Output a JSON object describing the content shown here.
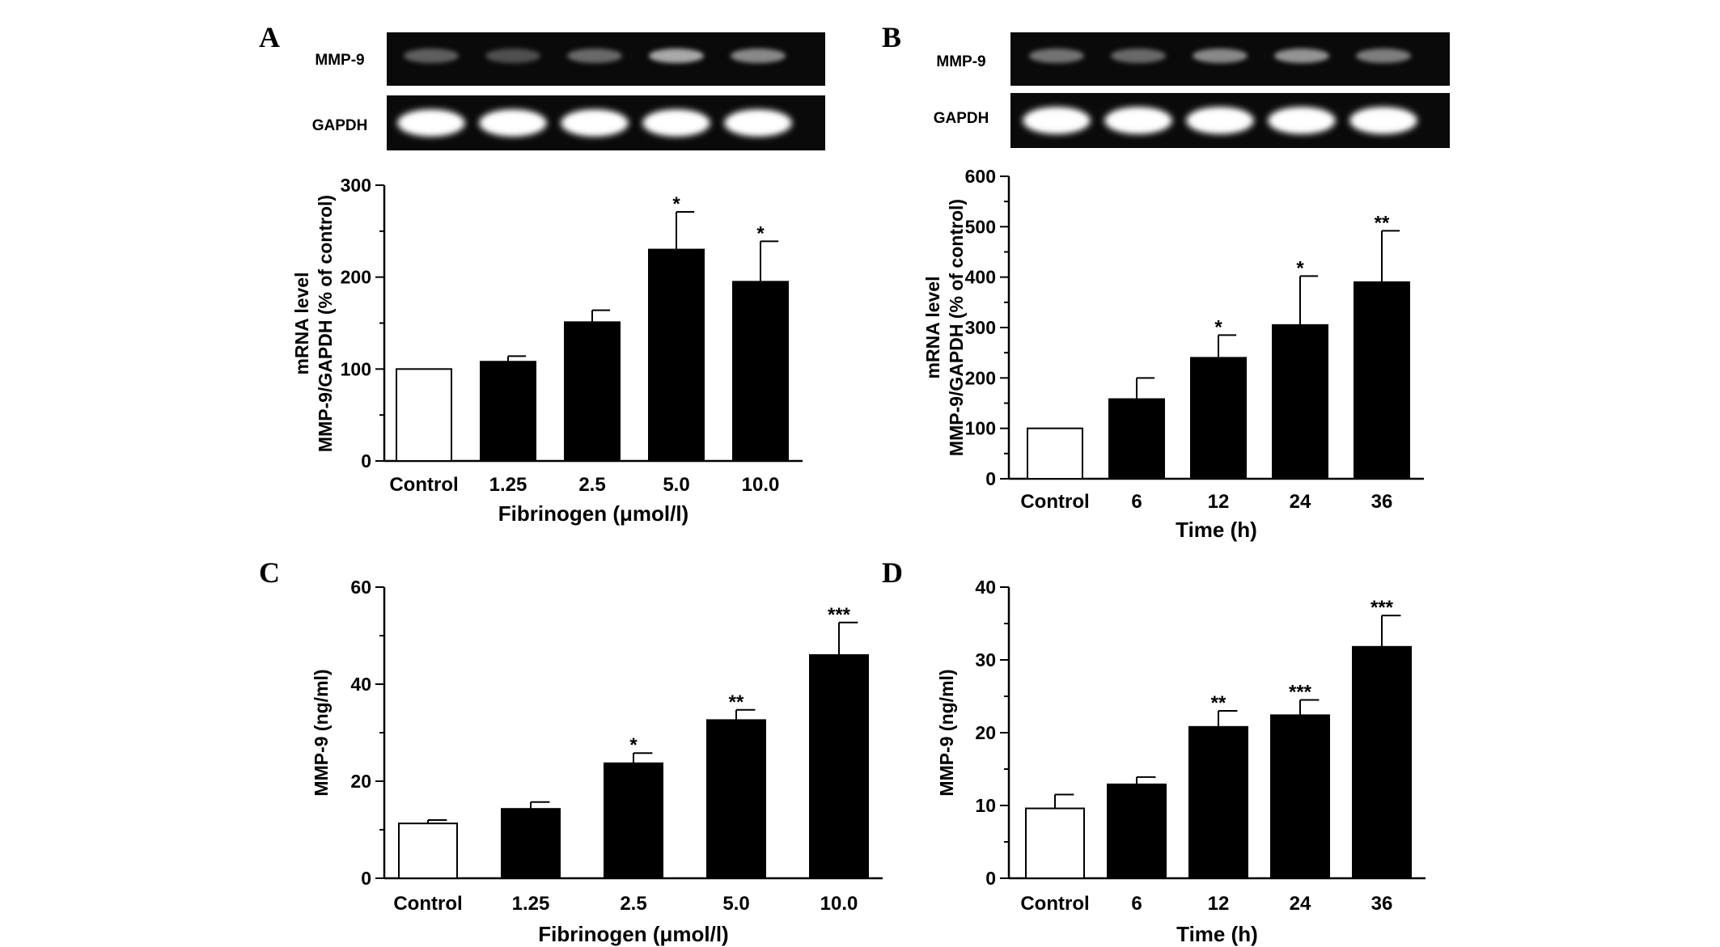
{
  "colors": {
    "bar": "#000000",
    "control_bar": "#ffffff",
    "axis": "#000000",
    "gel_bg": "#0a0a0a",
    "band": "#ffffff"
  },
  "gels": {
    "A": {
      "lanes": 5,
      "rows": [
        {
          "label": "MMP-9",
          "intensity": [
            0.25,
            0.18,
            0.3,
            0.6,
            0.45
          ]
        },
        {
          "label": "GAPDH",
          "intensity": [
            0.95,
            0.95,
            0.95,
            0.95,
            0.95
          ]
        }
      ]
    },
    "B": {
      "lanes": 5,
      "rows": [
        {
          "label": "MMP-9",
          "intensity": [
            0.35,
            0.3,
            0.45,
            0.5,
            0.4
          ]
        },
        {
          "label": "GAPDH",
          "intensity": [
            0.95,
            0.95,
            0.95,
            0.95,
            0.95
          ]
        }
      ]
    }
  },
  "chart_data": [
    {
      "panel": "A",
      "type": "bar",
      "categories": [
        "Control",
        "1.25",
        "2.5",
        "5.0",
        "10.0"
      ],
      "values": [
        100,
        108,
        151,
        230,
        195
      ],
      "errors": [
        0,
        6,
        13,
        41,
        44
      ],
      "significance": [
        "",
        "",
        "",
        "*",
        "*"
      ],
      "xlabel": "Fibrinogen (μmol/l)",
      "ylabel_lines": [
        "mRNA level",
        "MMP-9/GAPDH (% of control)"
      ],
      "ylim": [
        0,
        300
      ],
      "yticks": [
        0,
        100,
        200,
        300
      ],
      "minor_step": 50,
      "first_bar_color": "#ffffff",
      "bar_color": "#000000"
    },
    {
      "panel": "B",
      "type": "bar",
      "categories": [
        "Control",
        "6",
        "12",
        "24",
        "36"
      ],
      "values": [
        100,
        158,
        240,
        305,
        390
      ],
      "errors": [
        0,
        42,
        45,
        97,
        102
      ],
      "significance": [
        "",
        "",
        "*",
        "*",
        "**"
      ],
      "xlabel": "Time (h)",
      "ylabel_lines": [
        "mRNA level",
        "MMP-9/GAPDH (% of control)"
      ],
      "ylim": [
        0,
        600
      ],
      "yticks": [
        0,
        100,
        200,
        300,
        400,
        500,
        600
      ],
      "minor_step": 50,
      "first_bar_color": "#ffffff",
      "bar_color": "#000000"
    },
    {
      "panel": "C",
      "type": "bar",
      "categories": [
        "Control",
        "1.25",
        "2.5",
        "5.0",
        "10.0"
      ],
      "values": [
        11.3,
        14.3,
        23.7,
        32.6,
        46.0
      ],
      "errors": [
        0.7,
        1.4,
        2.1,
        2.1,
        6.7
      ],
      "significance": [
        "",
        "",
        "*",
        "**",
        "***"
      ],
      "xlabel": "Fibrinogen (μmol/l)",
      "ylabel_lines": [
        "MMP-9 (ng/ml)"
      ],
      "ylim": [
        0,
        60
      ],
      "yticks": [
        0,
        20,
        40,
        60
      ],
      "minor_step": 10,
      "first_bar_color": "#ffffff",
      "bar_color": "#000000"
    },
    {
      "panel": "D",
      "type": "bar",
      "categories": [
        "Control",
        "6",
        "12",
        "24",
        "36"
      ],
      "values": [
        9.6,
        12.9,
        20.8,
        22.4,
        31.8
      ],
      "errors": [
        1.9,
        1.0,
        2.2,
        2.1,
        4.3
      ],
      "significance": [
        "",
        "",
        "**",
        "***",
        "***"
      ],
      "xlabel": "Time (h)",
      "ylabel_lines": [
        "MMP-9 (ng/ml)"
      ],
      "ylim": [
        0,
        40
      ],
      "yticks": [
        0,
        10,
        20,
        30,
        40
      ],
      "minor_step": 5,
      "first_bar_color": "#ffffff",
      "bar_color": "#000000"
    }
  ]
}
